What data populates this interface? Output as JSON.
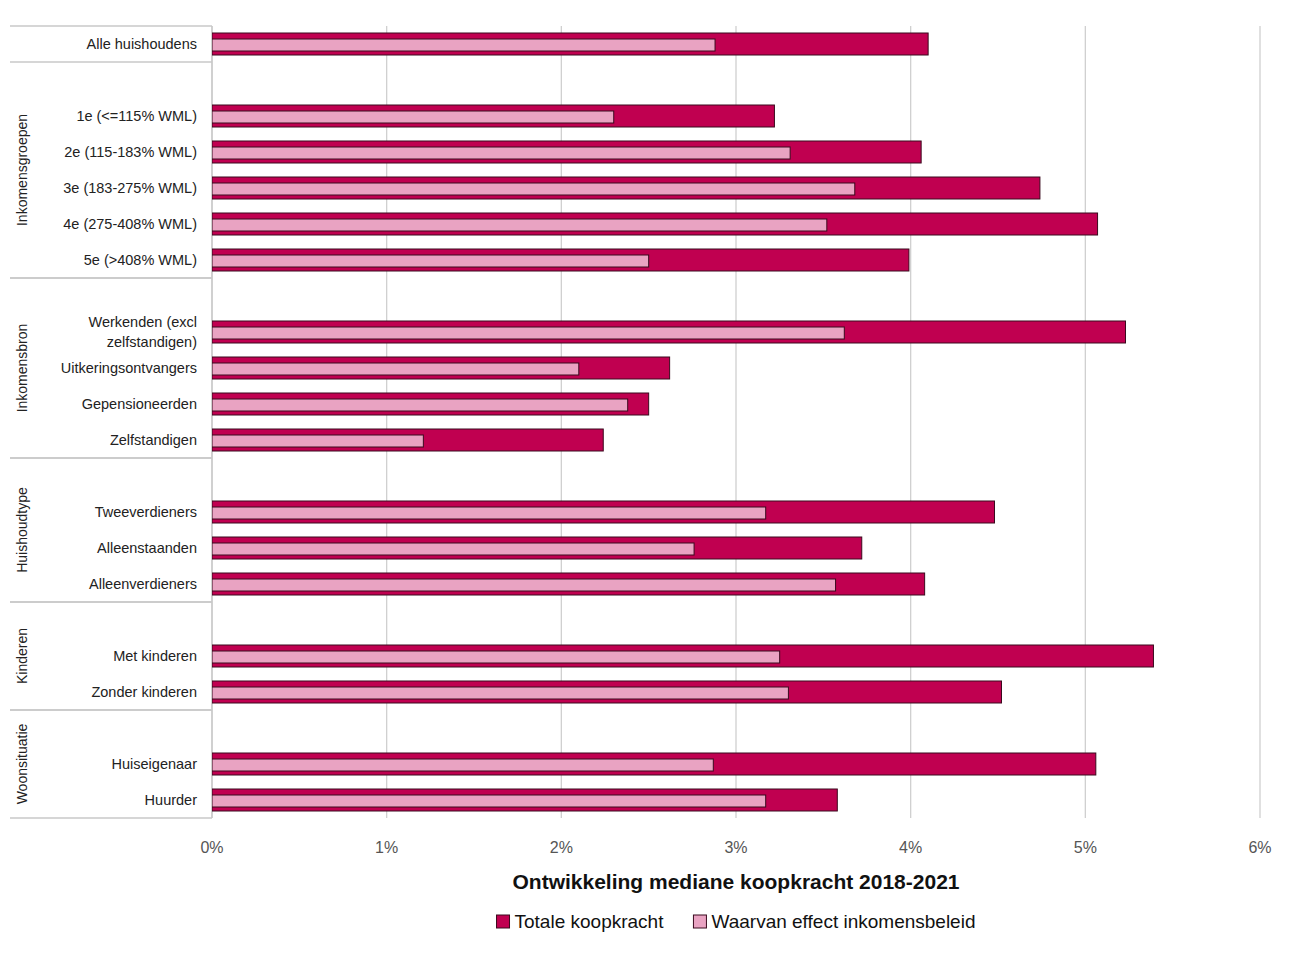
{
  "chart_data": {
    "type": "bar",
    "orientation": "horizontal",
    "xlabel": "Ontwikkeling mediane koopkracht 2018-2021",
    "categories": [
      "Alle huishoudens",
      null,
      "1e (<=115% WML)",
      "2e (115-183% WML)",
      "3e (183-275% WML)",
      "4e (275-408% WML)",
      "5e (>408% WML)",
      null,
      "Werkenden (excl zelfstandigen)",
      "Uitkeringsontvangers",
      "Gepensioneerden",
      "Zelfstandigen",
      null,
      "Tweeverdieners",
      "Alleenstaanden",
      "Alleenverdieners",
      null,
      "Met kinderen",
      "Zonder kinderen",
      null,
      "Huiseigenaar",
      "Huurder"
    ],
    "groups": [
      {
        "label": "Inkomensgroepen",
        "first": 1,
        "last": 6
      },
      {
        "label": "Inkomensbron",
        "first": 7,
        "last": 11
      },
      {
        "label": "Huishoudtype",
        "first": 12,
        "last": 15
      },
      {
        "label": "Kinderen",
        "first": 16,
        "last": 18
      },
      {
        "label": "Woonsituatie",
        "first": 19,
        "last": 21
      }
    ],
    "series": [
      {
        "name": "Totale koopkracht",
        "color": "#c00050",
        "values": [
          4.1,
          null,
          3.22,
          4.06,
          4.74,
          5.07,
          3.99,
          null,
          5.23,
          2.62,
          2.5,
          2.24,
          null,
          4.48,
          3.72,
          4.08,
          null,
          5.39,
          4.52,
          null,
          5.06,
          3.58
        ]
      },
      {
        "name": "Waarvan effect inkomensbeleid",
        "color": "#e9a3c2",
        "values": [
          2.88,
          null,
          2.3,
          3.31,
          3.68,
          3.52,
          2.5,
          null,
          3.62,
          2.1,
          2.38,
          1.21,
          null,
          3.17,
          2.76,
          3.57,
          null,
          3.25,
          3.3,
          null,
          2.87,
          3.17
        ]
      }
    ],
    "xlim": [
      0,
      6
    ],
    "xticks": [
      {
        "value": 0,
        "label": "0%"
      },
      {
        "value": 1,
        "label": "1%"
      },
      {
        "value": 2,
        "label": "2%"
      },
      {
        "value": 3,
        "label": "3%"
      },
      {
        "value": 4,
        "label": "4%"
      },
      {
        "value": 5,
        "label": "5%"
      },
      {
        "value": 6,
        "label": "6%"
      }
    ],
    "grid": true,
    "legend": "bottom"
  }
}
